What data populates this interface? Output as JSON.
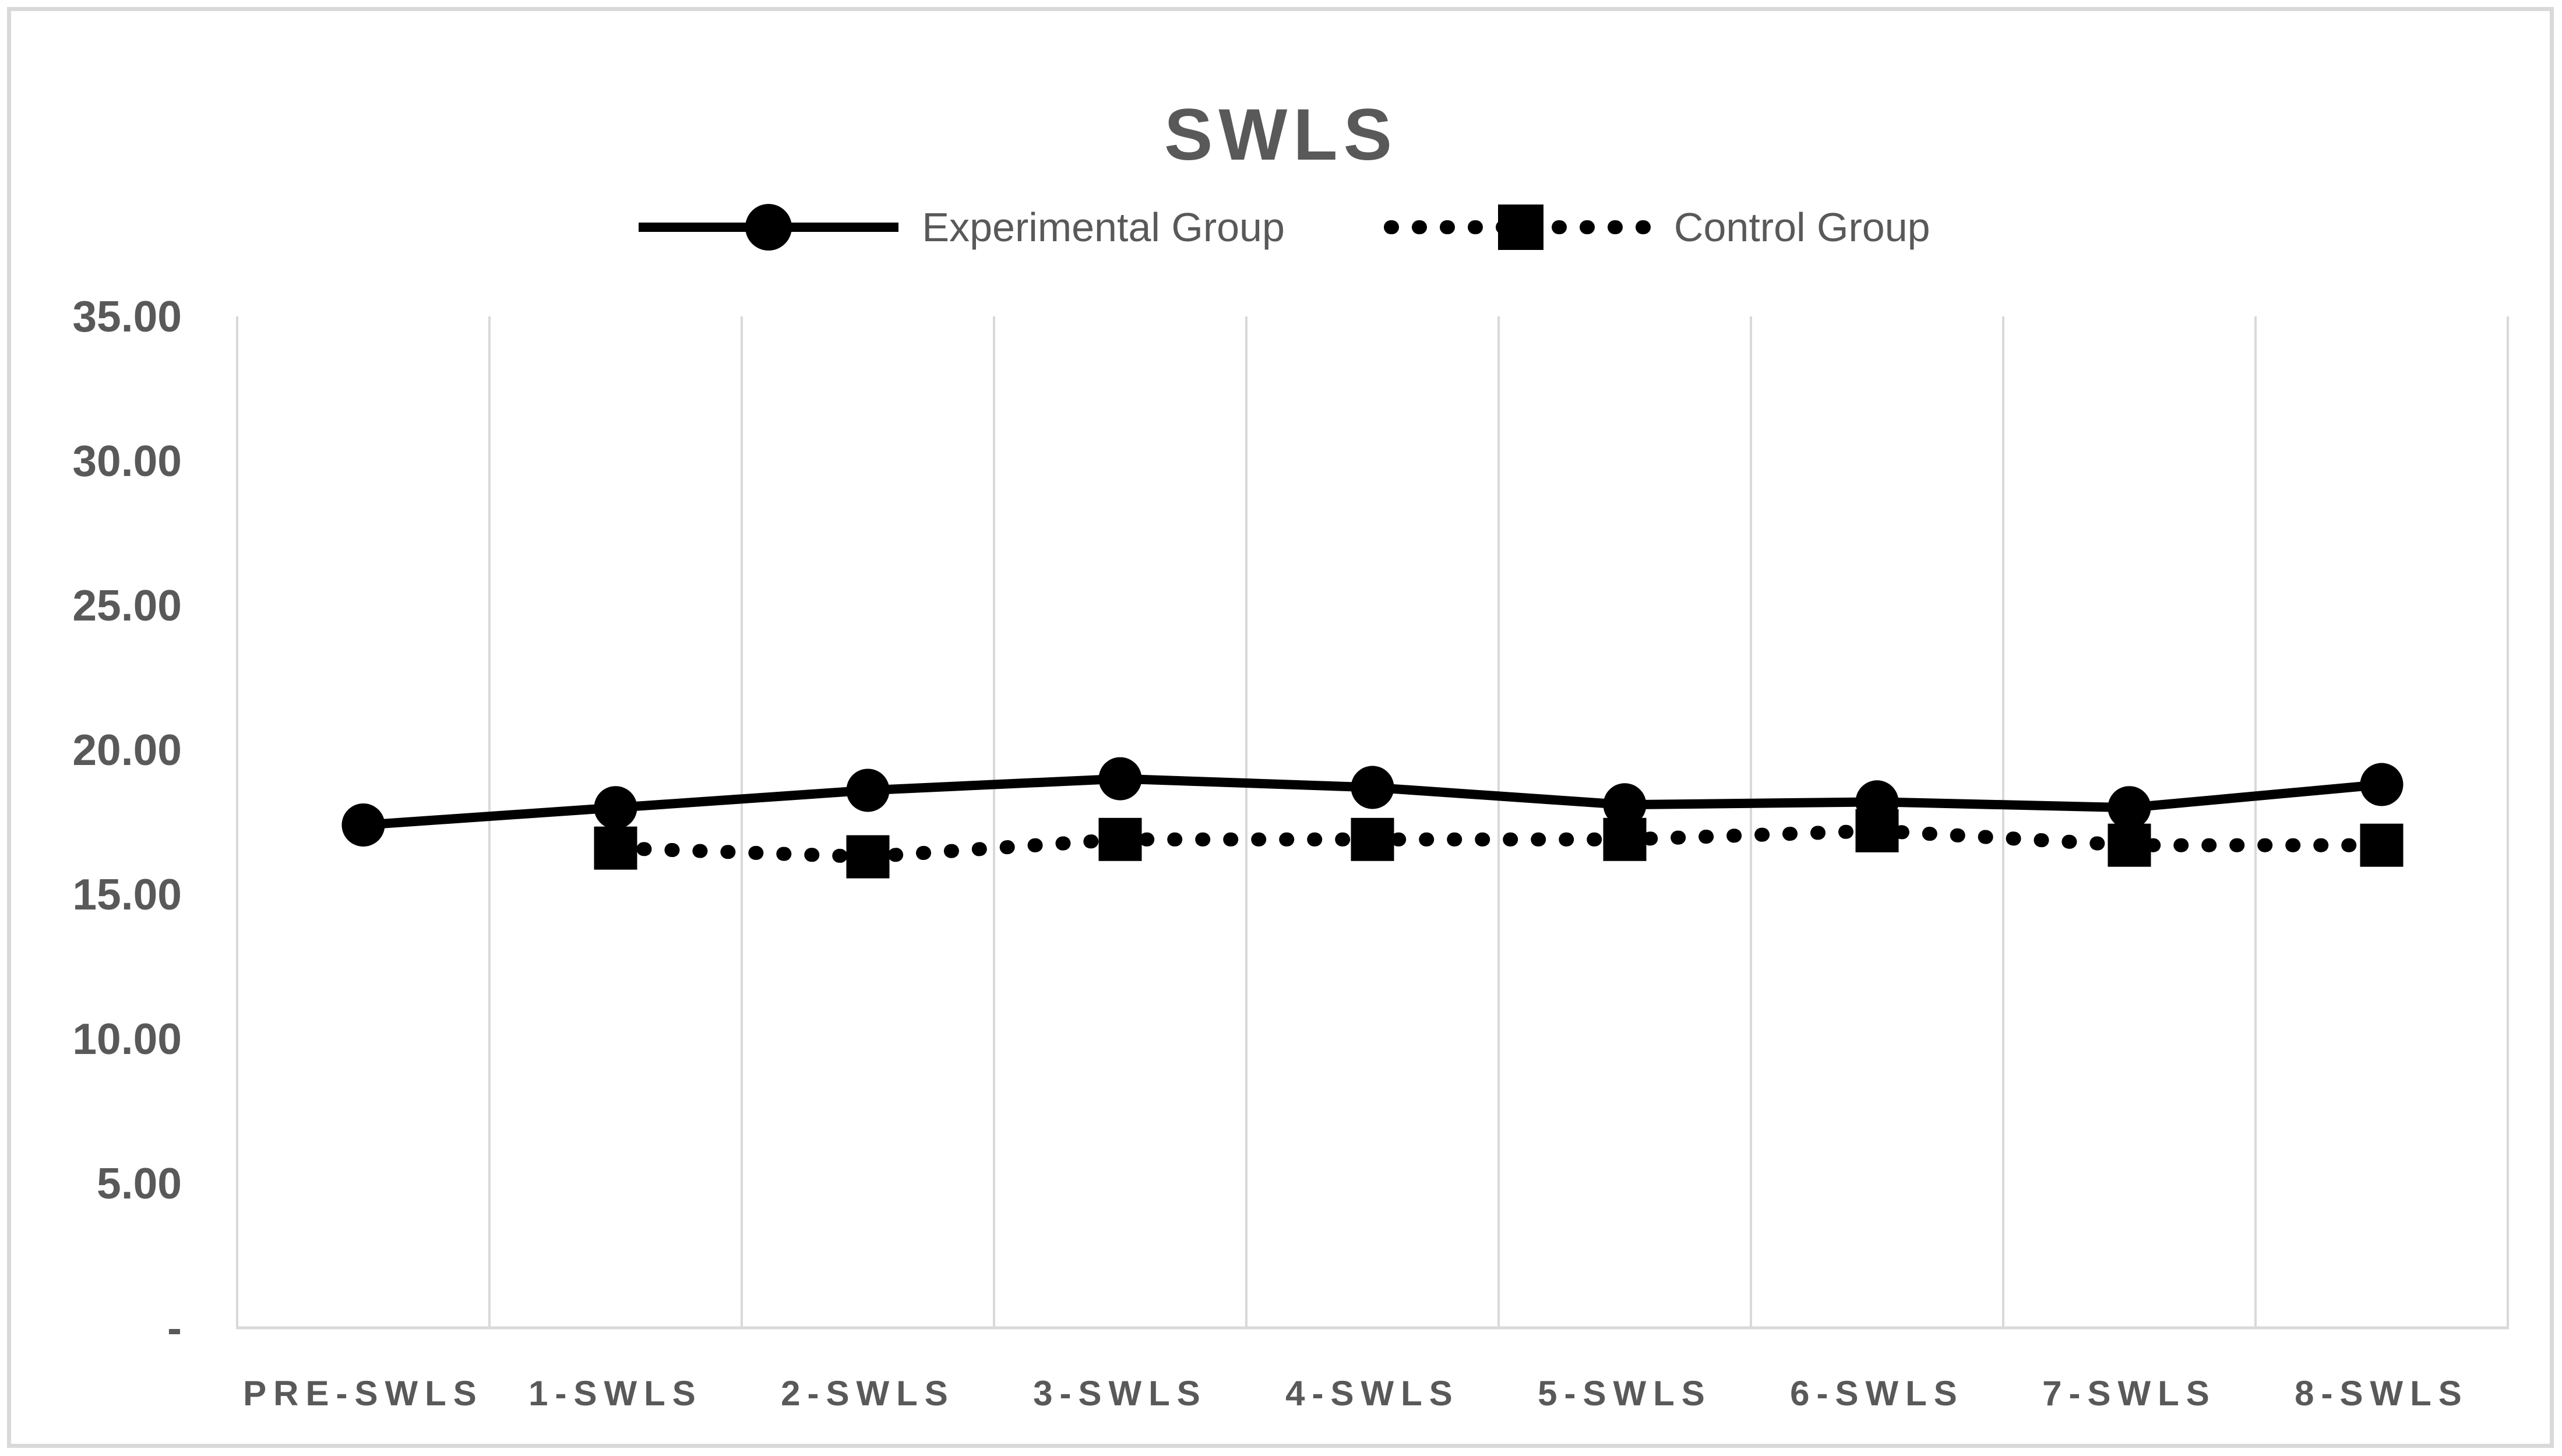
{
  "chart": {
    "colors": {
      "series": "#000000",
      "text": "#595959",
      "grid": "#d9d9d9",
      "background": "#ffffff"
    }
  },
  "chart_data": {
    "type": "line",
    "title": "SWLS",
    "xlabel": "",
    "ylabel": "",
    "grid": "vertical-only",
    "legend_position": "top",
    "categories": [
      "PRE-SWLS",
      "1-SWLS",
      "2-SWLS",
      "3-SWLS",
      "4-SWLS",
      "5-SWLS",
      "6-SWLS",
      "7-SWLS",
      "8-SWLS"
    ],
    "y_axis": {
      "min": 0,
      "max": 35,
      "step": 5,
      "tick_labels": [
        "35.00",
        "30.00",
        "25.00",
        "20.00",
        "15.00",
        "10.00",
        "5.00",
        "-"
      ]
    },
    "series": [
      {
        "name": "Experimental Group",
        "marker": "circle",
        "line_style": "solid",
        "values": [
          17.4,
          18.0,
          18.6,
          19.0,
          18.7,
          18.1,
          18.2,
          18.0,
          18.8
        ]
      },
      {
        "name": "Control Group",
        "marker": "square",
        "line_style": "dotted",
        "values": [
          null,
          16.6,
          16.3,
          16.9,
          16.9,
          16.9,
          17.2,
          16.7,
          16.7
        ]
      }
    ]
  }
}
